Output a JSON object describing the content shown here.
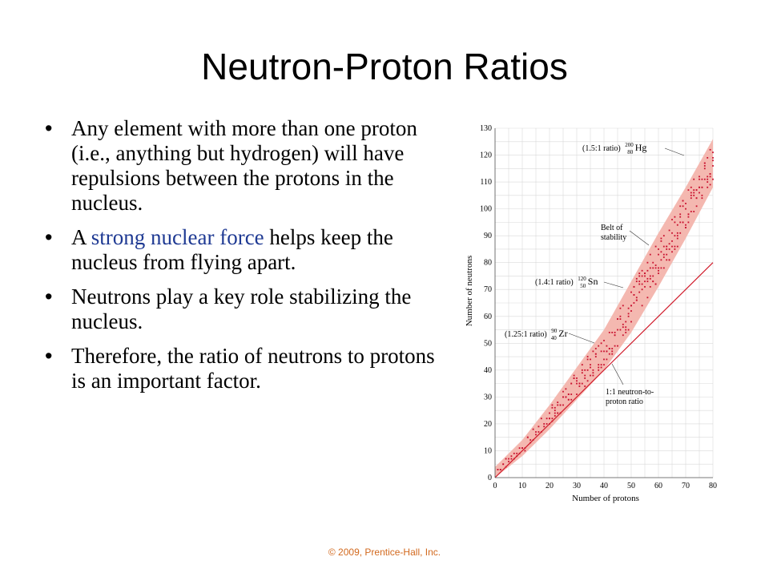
{
  "slide": {
    "title": "Neutron-Proton Ratios",
    "footer": "© 2009, Prentice-Hall, Inc."
  },
  "bullets": [
    {
      "text": "Any element with more than one proton (i.e., anything but hydrogen) will have repulsions between the protons in the nucleus."
    },
    {
      "before": "A ",
      "highlight": "strong nuclear force",
      "after": " helps keep the nucleus from flying apart."
    },
    {
      "text": "Neutrons play a key role stabilizing the nucleus."
    },
    {
      "text": "Therefore, the ratio of neutrons to protons is an important factor."
    }
  ],
  "chart_data": {
    "type": "scatter",
    "xlabel": "Number of protons",
    "ylabel": "Number of neutrons",
    "xlim": [
      0,
      80
    ],
    "ylim": [
      0,
      130
    ],
    "x_ticks": [
      0,
      10,
      20,
      30,
      40,
      50,
      60,
      70,
      80
    ],
    "y_ticks": [
      0,
      10,
      20,
      30,
      40,
      50,
      60,
      70,
      80,
      90,
      100,
      110,
      120,
      130
    ],
    "grid": true,
    "reference_line": {
      "label": "1:1 neutron-to-proton ratio",
      "x": [
        0,
        80
      ],
      "y": [
        0,
        80
      ]
    },
    "belt_of_stability": {
      "label": "Belt of stability",
      "x": [
        0,
        10,
        20,
        30,
        40,
        50,
        60,
        70,
        80
      ],
      "lower": [
        0,
        8,
        18,
        29,
        40,
        54,
        71,
        89,
        108
      ],
      "upper": [
        4,
        14,
        27,
        41,
        55,
        73,
        91,
        108,
        126
      ]
    },
    "annotations": [
      {
        "ratio": "(1.5:1 ratio)",
        "mass": "200",
        "atomic": "80",
        "symbol": "Hg",
        "x": 80,
        "y": 120
      },
      {
        "ratio": "(1.4:1 ratio)",
        "mass": "120",
        "atomic": "50",
        "symbol": "Sn",
        "x": 50,
        "y": 70
      },
      {
        "ratio": "(1.25:1 ratio)",
        "mass": "90",
        "atomic": "40",
        "symbol": "Zr",
        "x": 40,
        "y": 50
      }
    ],
    "colors": {
      "band": "#f4b8b0",
      "points": "#c8102e",
      "line": "#d01a2a",
      "grid": "#d9d9d9"
    }
  }
}
